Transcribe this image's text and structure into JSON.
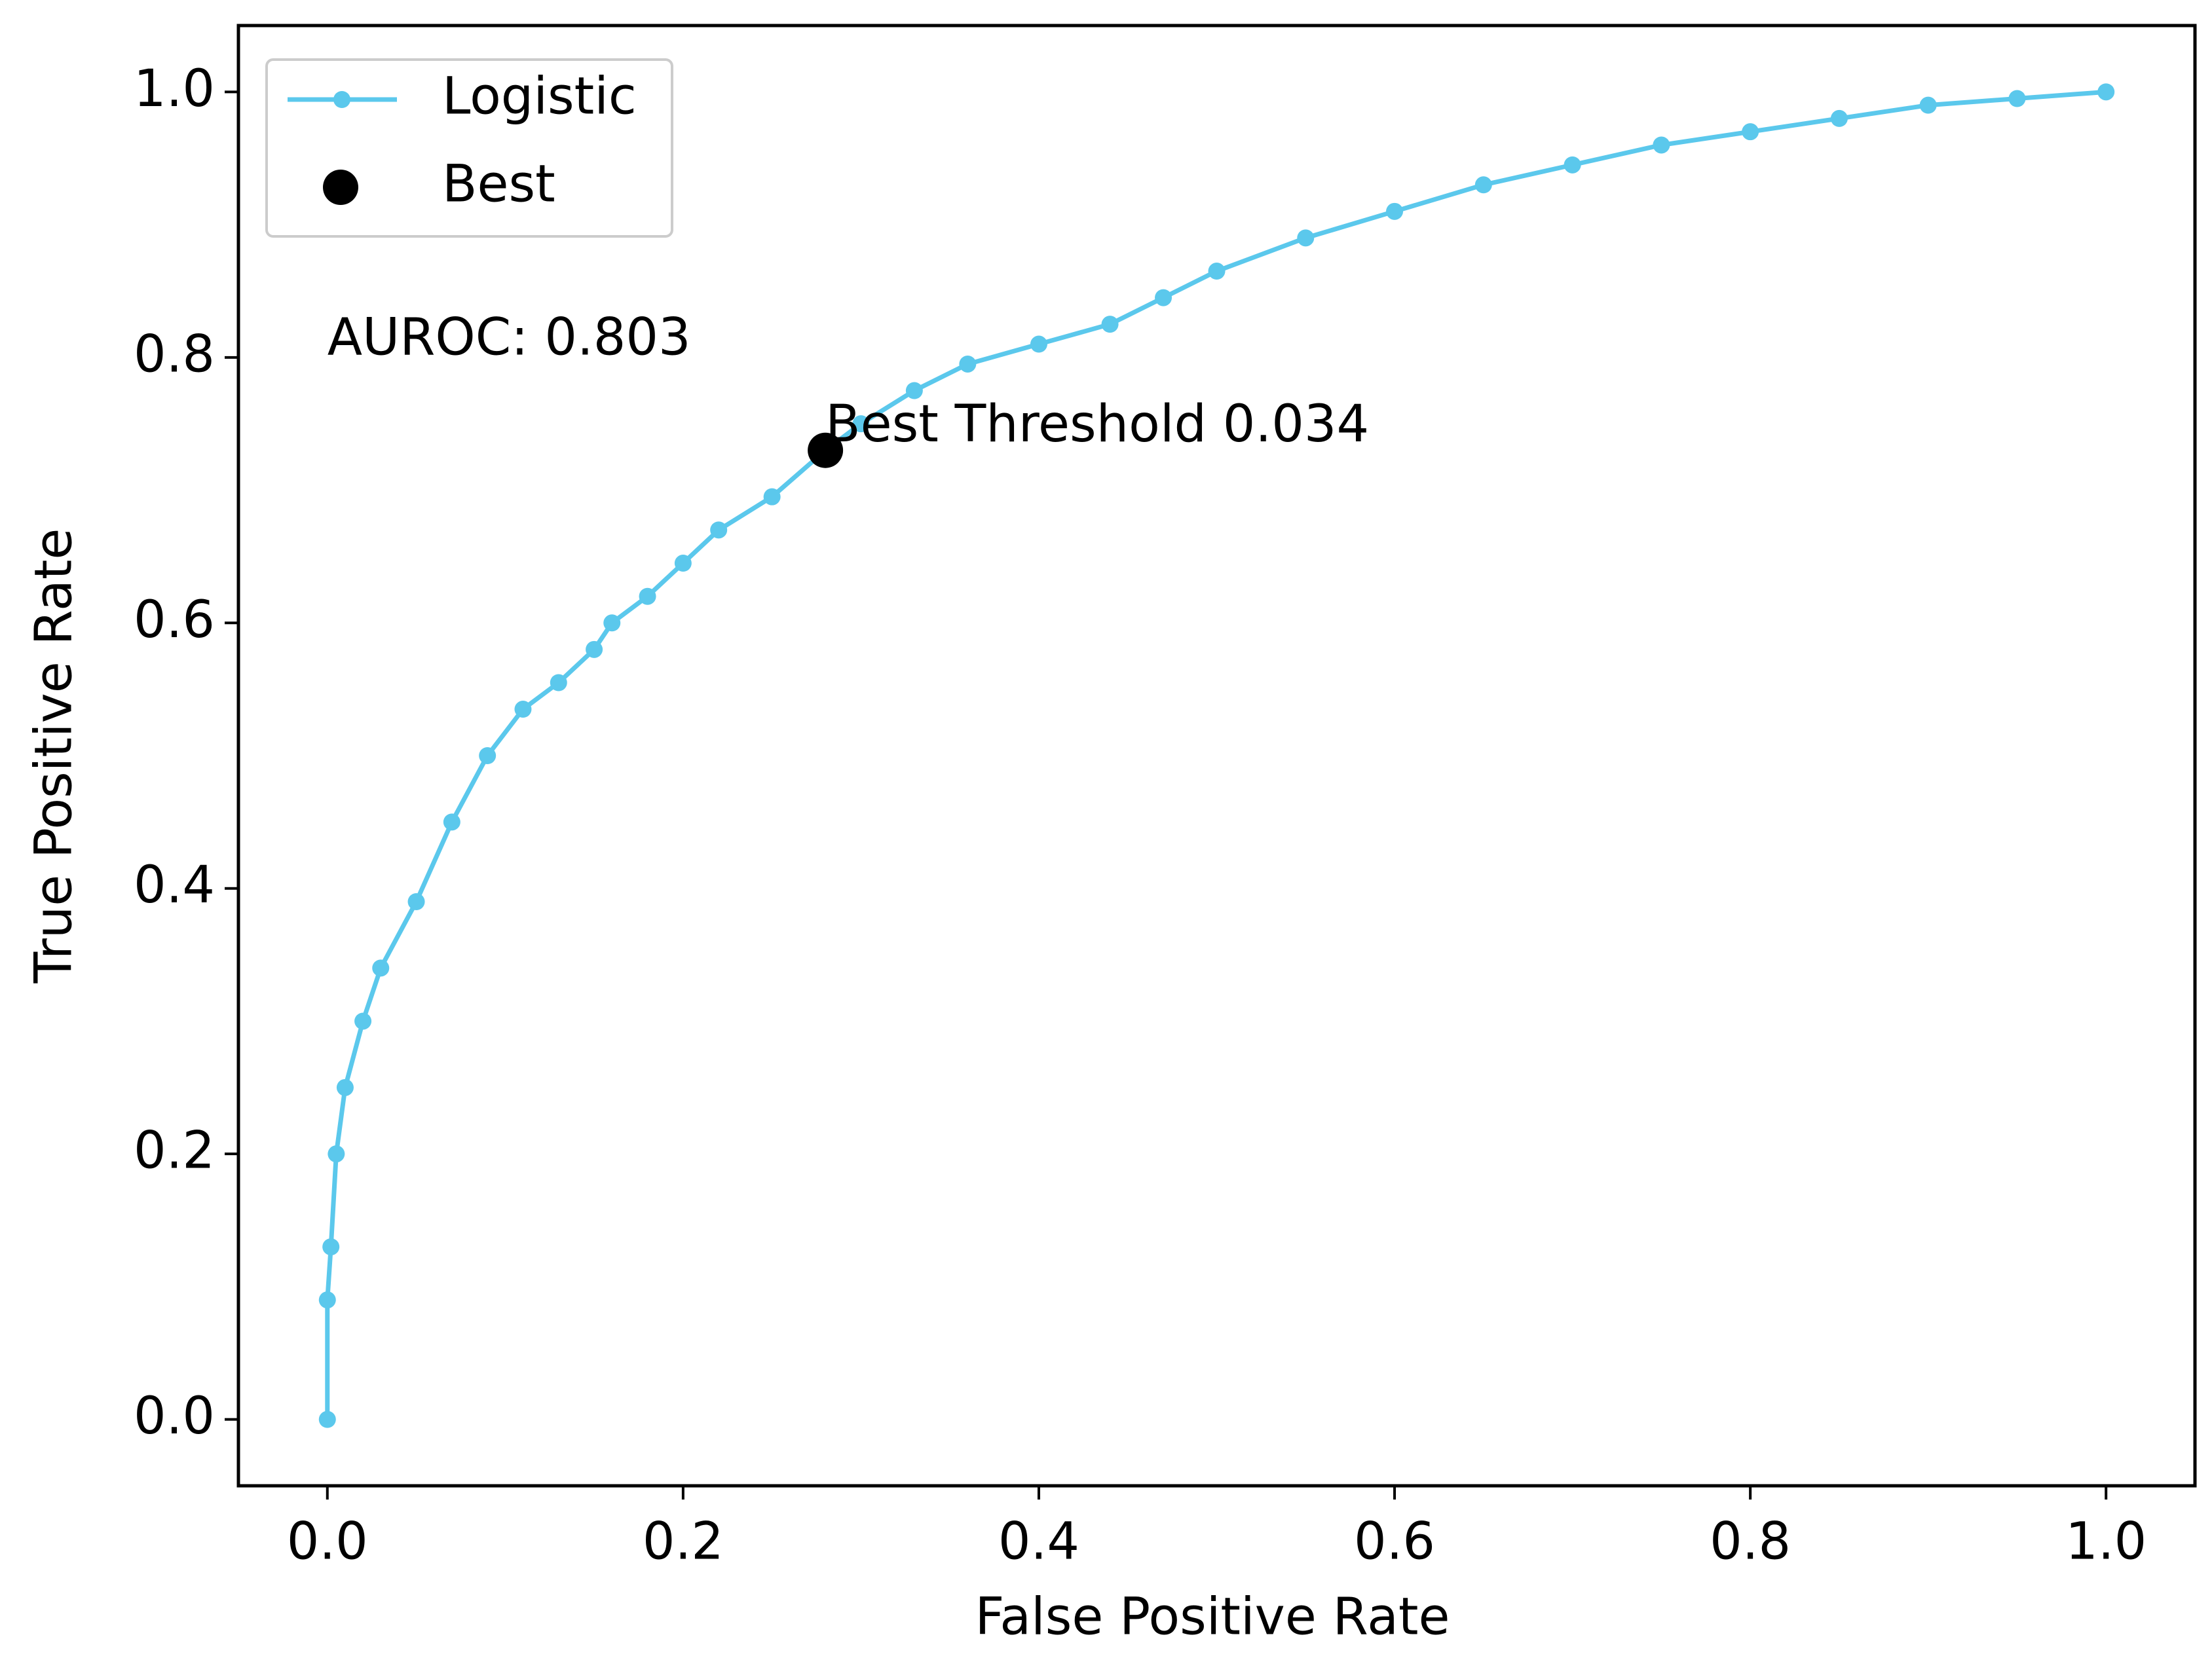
{
  "chart_data": {
    "type": "line",
    "xlabel": "False Positive Rate",
    "ylabel": "True Positive Rate",
    "series": [
      {
        "name": "Logistic",
        "type": "line",
        "color": "#5bc8ec",
        "x": [
          0,
          0,
          0.002,
          0.005,
          0.01,
          0.02,
          0.03,
          0.05,
          0.07,
          0.09,
          0.11,
          0.13,
          0.15,
          0.16,
          0.18,
          0.2,
          0.22,
          0.25,
          0.28,
          0.3,
          0.33,
          0.36,
          0.4,
          0.44,
          0.47,
          0.5,
          0.55,
          0.6,
          0.65,
          0.7,
          0.75,
          0.8,
          0.85,
          0.9,
          0.95,
          1.0
        ],
        "values": [
          0,
          0.09,
          0.13,
          0.2,
          0.25,
          0.3,
          0.34,
          0.39,
          0.45,
          0.5,
          0.535,
          0.555,
          0.58,
          0.6,
          0.62,
          0.645,
          0.67,
          0.695,
          0.73,
          0.75,
          0.775,
          0.795,
          0.81,
          0.825,
          0.845,
          0.865,
          0.89,
          0.91,
          0.93,
          0.945,
          0.96,
          0.97,
          0.98,
          0.99,
          0.995,
          1.0
        ]
      },
      {
        "name": "Best",
        "type": "scatter",
        "color": "#000000",
        "x": [
          0.28
        ],
        "values": [
          0.73
        ]
      }
    ],
    "annotations": [
      "AUROC: 0.803",
      "Best Threshold 0.034"
    ],
    "xlim": [
      -0.05,
      1.05
    ],
    "ylim": [
      -0.05,
      1.05
    ],
    "xticks": [
      {
        "value": 0,
        "label": "0.0"
      },
      0.2,
      0.4,
      0.6,
      0.8,
      {
        "value": 1,
        "label": "1.0"
      }
    ],
    "yticks": [
      {
        "value": 0,
        "label": "0.0"
      },
      0.2,
      0.4,
      0.6,
      0.8,
      {
        "value": 1,
        "label": "1.0"
      }
    ],
    "grid": false,
    "legend": "upper left"
  }
}
